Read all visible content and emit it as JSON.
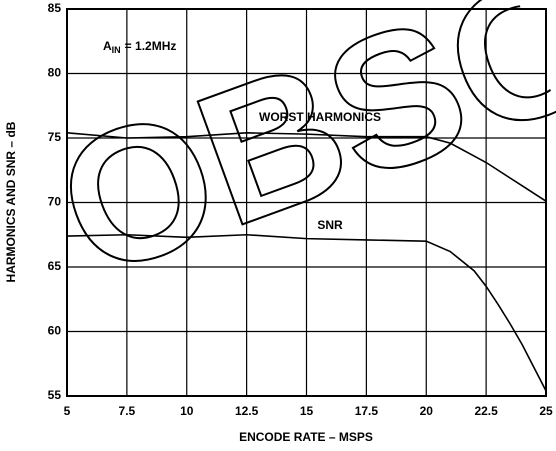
{
  "chart_data": {
    "type": "line",
    "x_label": "ENCODE RATE – MSPS",
    "y_label": "HARMONICS AND SNR – dB",
    "watermark": "OBSOLETE",
    "condition_label": {
      "base": "A",
      "subscript": "IN",
      "text": "= 1.2MHz"
    },
    "x": [
      5,
      7.5,
      10,
      12.5,
      15,
      17.5,
      20,
      21,
      22,
      22.5,
      23,
      23.5,
      24,
      24.5,
      25
    ],
    "series": [
      {
        "name": "WORST HARMONICS",
        "color": "#000000",
        "values": [
          75.4,
          75.0,
          75.1,
          75.4,
          75.3,
          75.1,
          75.1,
          74.6,
          73.6,
          73.1,
          72.5,
          71.9,
          71.3,
          70.7,
          70.1
        ]
      },
      {
        "name": "SNR",
        "color": "#000000",
        "values": [
          67.4,
          67.5,
          67.3,
          67.5,
          67.2,
          67.1,
          67.0,
          66.2,
          64.7,
          63.5,
          62.1,
          60.6,
          59.0,
          57.2,
          55.4
        ]
      }
    ],
    "xlim": [
      5,
      25
    ],
    "xticks": [
      5,
      7.5,
      10,
      12.5,
      15,
      17.5,
      20,
      22.5,
      25
    ],
    "ylim": [
      55,
      85
    ],
    "yticks": [
      55,
      60,
      65,
      70,
      75,
      80,
      85
    ],
    "grid": true
  }
}
